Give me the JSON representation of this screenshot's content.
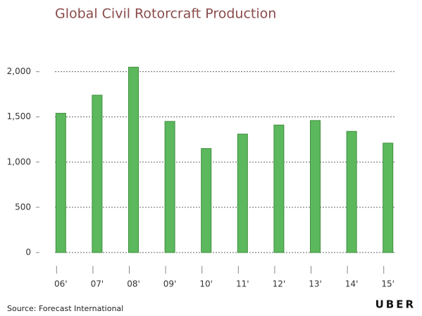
{
  "chart_data": {
    "type": "bar",
    "title": "Global Civil Rotorcraft Production",
    "categories": [
      "06'",
      "07'",
      "08'",
      "09'",
      "10'",
      "11'",
      "12'",
      "13'",
      "14'",
      "15'"
    ],
    "values": [
      1540,
      1740,
      2050,
      1450,
      1150,
      1310,
      1410,
      1460,
      1340,
      1210
    ],
    "color": "#5cb85c",
    "ylim": [
      0,
      2200
    ],
    "yticks": [
      0,
      500,
      {
        "value": 1000,
        "label": "1,000"
      },
      {
        "value": 1500,
        "label": "1,500"
      },
      {
        "value": 2000,
        "label": "2,000"
      }
    ],
    "grid": true,
    "source": "Source: Forecast International",
    "logo": "UBER"
  }
}
